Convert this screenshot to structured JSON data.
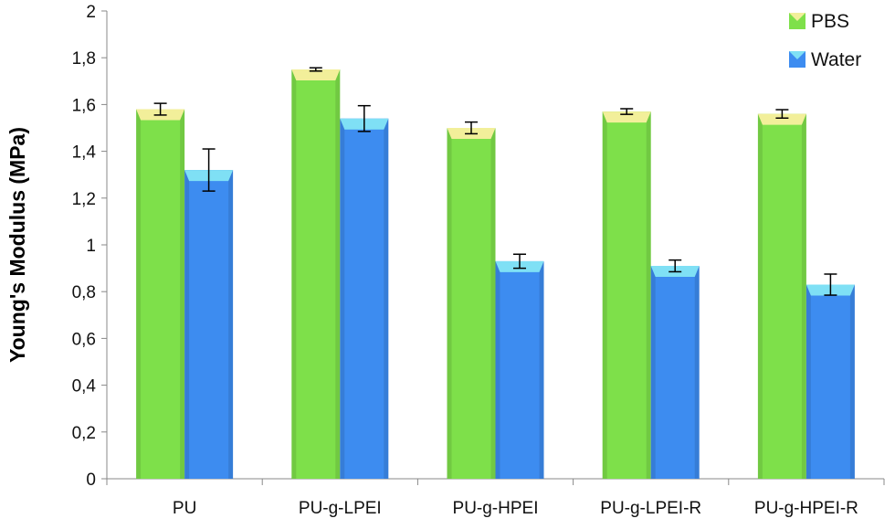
{
  "chart_data": {
    "type": "bar",
    "title": "",
    "xlabel": "",
    "ylabel": "Young's Modulus (MPa)",
    "ylim": [
      0,
      2
    ],
    "yticks": [
      0,
      0.2,
      0.4,
      0.6,
      0.8,
      1,
      1.2,
      1.4,
      1.6,
      1.8,
      2
    ],
    "ytick_labels": [
      "0",
      "0,2",
      "0,4",
      "0,6",
      "0,8",
      "1",
      "1,2",
      "1,4",
      "1,6",
      "1,8",
      "2"
    ],
    "categories": [
      "PU",
      "PU-g-LPEI",
      "PU-g-HPEI",
      "PU-g-LPEI-R",
      "PU-g-HPEI-R"
    ],
    "series": [
      {
        "name": "PBS",
        "values": [
          1.58,
          1.75,
          1.5,
          1.57,
          1.56
        ],
        "errors": [
          0.025,
          0.007,
          0.025,
          0.012,
          0.018
        ],
        "color": "#7ee04a",
        "cap_color": "#f2ef9a"
      },
      {
        "name": "Water",
        "values": [
          1.32,
          1.54,
          0.93,
          0.91,
          0.83
        ],
        "errors": [
          0.09,
          0.055,
          0.03,
          0.025,
          0.045
        ],
        "color": "#3d8cf0",
        "cap_color": "#7fe0f5"
      }
    ],
    "legend_position": "top-right",
    "grid": false
  }
}
